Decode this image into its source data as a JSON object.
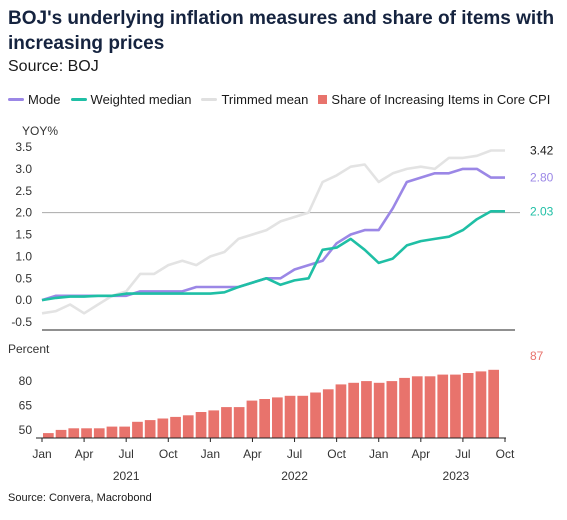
{
  "title": "BOJ's underlying inflation measures and share of items with increasing prices",
  "subtitle": "Source: BOJ",
  "footer": "Source: Convera, Macrobond",
  "legend": [
    {
      "label": "Mode",
      "color": "#9b87e6",
      "kind": "line"
    },
    {
      "label": "Weighted median",
      "color": "#1fbfa5",
      "kind": "line"
    },
    {
      "label": "Trimmed mean",
      "color": "#e6e6e6",
      "kind": "line"
    },
    {
      "label": "Share of Increasing Items in Core CPI",
      "color": "#e8736c",
      "kind": "box"
    }
  ],
  "chart_data": [
    {
      "type": "line",
      "ylabel": "YOY%",
      "ylim": [
        -0.5,
        3.5
      ],
      "yticks": [
        "3.5",
        "3.0",
        "2.5",
        "2.0",
        "1.5",
        "1.0",
        "0.5",
        "0.0",
        "-0.5"
      ],
      "reference_line": 2.0,
      "x": [
        "2021-01",
        "2021-02",
        "2021-03",
        "2021-04",
        "2021-05",
        "2021-06",
        "2021-07",
        "2021-08",
        "2021-09",
        "2021-10",
        "2021-11",
        "2021-12",
        "2022-01",
        "2022-02",
        "2022-03",
        "2022-04",
        "2022-05",
        "2022-06",
        "2022-07",
        "2022-08",
        "2022-09",
        "2022-10",
        "2022-11",
        "2022-12",
        "2023-01",
        "2023-02",
        "2023-03",
        "2023-04",
        "2023-05",
        "2023-06",
        "2023-07",
        "2023-08",
        "2023-09",
        "2023-10"
      ],
      "series": [
        {
          "name": "Trimmed mean",
          "color": "#e6e6e6",
          "end_label": "3.42",
          "values": [
            -0.3,
            -0.25,
            -0.1,
            -0.3,
            -0.1,
            0.1,
            0.2,
            0.6,
            0.6,
            0.8,
            0.9,
            0.8,
            1.0,
            1.1,
            1.4,
            1.5,
            1.6,
            1.8,
            1.9,
            2.0,
            2.7,
            2.85,
            3.05,
            3.1,
            2.7,
            2.9,
            3.0,
            3.05,
            3.0,
            3.25,
            3.25,
            3.3,
            3.42,
            3.42
          ]
        },
        {
          "name": "Mode",
          "color": "#9b87e6",
          "end_label": "2.80",
          "values": [
            0.0,
            0.1,
            0.1,
            0.1,
            0.1,
            0.1,
            0.1,
            0.2,
            0.2,
            0.2,
            0.2,
            0.3,
            0.3,
            0.3,
            0.3,
            0.4,
            0.5,
            0.5,
            0.7,
            0.8,
            0.9,
            1.3,
            1.5,
            1.6,
            1.6,
            2.1,
            2.7,
            2.8,
            2.9,
            2.9,
            3.0,
            3.0,
            2.8,
            2.8
          ]
        },
        {
          "name": "Weighted median",
          "color": "#1fbfa5",
          "end_label": "2.03",
          "values": [
            0.0,
            0.05,
            0.08,
            0.08,
            0.1,
            0.1,
            0.15,
            0.15,
            0.15,
            0.15,
            0.15,
            0.15,
            0.15,
            0.18,
            0.3,
            0.4,
            0.5,
            0.35,
            0.45,
            0.5,
            1.15,
            1.2,
            1.4,
            1.15,
            0.85,
            0.95,
            1.25,
            1.35,
            1.4,
            1.45,
            1.6,
            1.85,
            2.03,
            2.03
          ]
        }
      ]
    },
    {
      "type": "bar",
      "ylabel": "Percent",
      "ylim": [
        45,
        93
      ],
      "yticks": [
        "80",
        "65",
        "50"
      ],
      "color": "#e8736c",
      "end_label": "87",
      "values": [
        48,
        50,
        51,
        51,
        51,
        52,
        52,
        55,
        56,
        57,
        58,
        59,
        61,
        62,
        64,
        64,
        68,
        69,
        70,
        71,
        71,
        73,
        75,
        78,
        79,
        80,
        79,
        80,
        82,
        83,
        83,
        84,
        84,
        85,
        86,
        87
      ]
    }
  ],
  "xaxis": {
    "tick_labels": [
      "Jan",
      "Apr",
      "Jul",
      "Oct",
      "Jan",
      "Apr",
      "Jul",
      "Oct",
      "Jan",
      "Apr",
      "Jul",
      "Oct"
    ],
    "year_labels": [
      "2021",
      "2022",
      "2023"
    ]
  }
}
